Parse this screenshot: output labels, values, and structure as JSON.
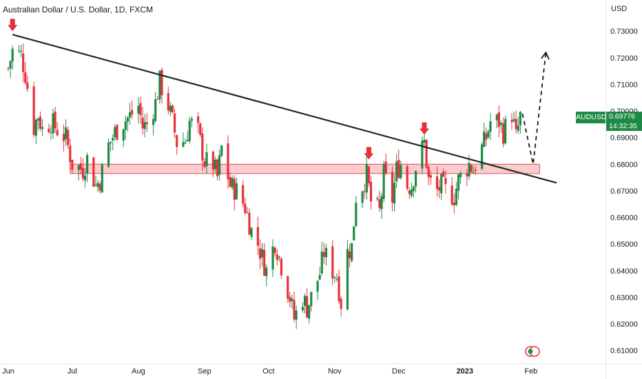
{
  "header": {
    "title": "Australian Dollar / U.S. Dollar, 1D, FXCM",
    "currency": "USD"
  },
  "symbol_tag": {
    "symbol": "AUDUSD",
    "price": "0.69776",
    "countdown": "14:32:35",
    "color": "#1e8a45"
  },
  "colors": {
    "up": "#1e8a45",
    "down": "#e8303a",
    "trendline": "#1a2a1a",
    "zone_fill": "#f5a3a8",
    "zone_border": "#e04a52",
    "arrow": "#e8303a",
    "projection": "#131722"
  },
  "chart_data": {
    "type": "candlestick",
    "title": "Australian Dollar / U.S. Dollar, 1D, FXCM",
    "ylabel": "USD",
    "ylim": [
      0.605,
      0.736
    ],
    "y_ticks": [
      "0.73000",
      "0.72000",
      "0.71000",
      "0.70000",
      "0.69000",
      "0.68000",
      "0.67000",
      "0.66000",
      "0.65000",
      "0.64000",
      "0.63000",
      "0.62000",
      "0.61000"
    ],
    "x_ticks": [
      {
        "label": "Jun",
        "date": "2022-06-01"
      },
      {
        "label": "Jul",
        "date": "2022-07-01"
      },
      {
        "label": "Aug",
        "date": "2022-08-01"
      },
      {
        "label": "Sep",
        "date": "2022-09-01"
      },
      {
        "label": "Oct",
        "date": "2022-10-01"
      },
      {
        "label": "Nov",
        "date": "2022-11-01"
      },
      {
        "label": "Dec",
        "date": "2022-12-01"
      },
      {
        "label": "2023",
        "date": "2023-01-01",
        "bold": true
      },
      {
        "label": "Feb",
        "date": "2023-02-01"
      }
    ],
    "xlim": [
      "2022-06-01",
      "2023-02-13"
    ],
    "close_path": [
      [
        "2022-06-01",
        0.716
      ],
      [
        "2022-06-03",
        0.7226
      ],
      [
        "2022-06-07",
        0.721
      ],
      [
        "2022-06-09",
        0.714
      ],
      [
        "2022-06-13",
        0.694
      ],
      [
        "2022-06-15",
        0.6985
      ],
      [
        "2022-06-17",
        0.693
      ],
      [
        "2022-06-21",
        0.696
      ],
      [
        "2022-06-24",
        0.693
      ],
      [
        "2022-06-28",
        0.69
      ],
      [
        "2022-07-01",
        0.68
      ],
      [
        "2022-07-06",
        0.678
      ],
      [
        "2022-07-08",
        0.682
      ],
      [
        "2022-07-12",
        0.672
      ],
      [
        "2022-07-14",
        0.674
      ],
      [
        "2022-07-18",
        0.687
      ],
      [
        "2022-07-21",
        0.692
      ],
      [
        "2022-07-25",
        0.696
      ],
      [
        "2022-07-28",
        0.698
      ],
      [
        "2022-08-01",
        0.702
      ],
      [
        "2022-08-03",
        0.694
      ],
      [
        "2022-08-05",
        0.695
      ],
      [
        "2022-08-09",
        0.703
      ],
      [
        "2022-08-11",
        0.711
      ],
      [
        "2022-08-15",
        0.702
      ],
      [
        "2022-08-17",
        0.696
      ],
      [
        "2022-08-19",
        0.688
      ],
      [
        "2022-08-23",
        0.689
      ],
      [
        "2022-08-25",
        0.696
      ],
      [
        "2022-08-29",
        0.692
      ],
      [
        "2022-09-01",
        0.681
      ],
      [
        "2022-09-05",
        0.68
      ],
      [
        "2022-09-07",
        0.675
      ],
      [
        "2022-09-09",
        0.686
      ],
      [
        "2022-09-13",
        0.672
      ],
      [
        "2022-09-16",
        0.67
      ],
      [
        "2022-09-20",
        0.664
      ],
      [
        "2022-09-23",
        0.655
      ],
      [
        "2022-09-26",
        0.65
      ],
      [
        "2022-09-28",
        0.645
      ],
      [
        "2022-09-30",
        0.64
      ],
      [
        "2022-10-04",
        0.651
      ],
      [
        "2022-10-07",
        0.642
      ],
      [
        "2022-10-11",
        0.63
      ],
      [
        "2022-10-13",
        0.622
      ],
      [
        "2022-10-17",
        0.63
      ],
      [
        "2022-10-19",
        0.626
      ],
      [
        "2022-10-21",
        0.63
      ],
      [
        "2022-10-25",
        0.639
      ],
      [
        "2022-10-27",
        0.647
      ],
      [
        "2022-10-31",
        0.64
      ],
      [
        "2022-11-02",
        0.638
      ],
      [
        "2022-11-04",
        0.628
      ],
      [
        "2022-11-07",
        0.647
      ],
      [
        "2022-11-09",
        0.649
      ],
      [
        "2022-11-11",
        0.668
      ],
      [
        "2022-11-14",
        0.672
      ],
      [
        "2022-11-16",
        0.676
      ],
      [
        "2022-11-18",
        0.666
      ],
      [
        "2022-11-22",
        0.662
      ],
      [
        "2022-11-24",
        0.676
      ],
      [
        "2022-11-28",
        0.667
      ],
      [
        "2022-11-30",
        0.678
      ],
      [
        "2022-12-02",
        0.68
      ],
      [
        "2022-12-05",
        0.672
      ],
      [
        "2022-12-07",
        0.672
      ],
      [
        "2022-12-09",
        0.679
      ],
      [
        "2022-12-13",
        0.688
      ],
      [
        "2022-12-15",
        0.674
      ],
      [
        "2022-12-19",
        0.67
      ],
      [
        "2022-12-21",
        0.672
      ],
      [
        "2022-12-23",
        0.67
      ],
      [
        "2022-12-27",
        0.668
      ],
      [
        "2022-12-29",
        0.674
      ],
      [
        "2023-01-03",
        0.68
      ],
      [
        "2023-01-05",
        0.678
      ],
      [
        "2023-01-09",
        0.686
      ],
      [
        "2023-01-11",
        0.69
      ],
      [
        "2023-01-13",
        0.696
      ],
      [
        "2023-01-17",
        0.696
      ],
      [
        "2023-01-19",
        0.692
      ],
      [
        "2023-01-23",
        0.699
      ],
      [
        "2023-01-25",
        0.69
      ],
      [
        "2023-01-27",
        0.6978
      ]
    ],
    "support_zone": {
      "low": 0.6765,
      "high": 0.68,
      "start": "2022-06-30",
      "end": "2023-02-05"
    },
    "trendline": {
      "start": [
        "2022-06-03",
        0.7287
      ],
      "end": [
        "2023-02-13",
        0.673
      ]
    },
    "markers": [
      {
        "date": "2022-06-03",
        "price": 0.7287
      },
      {
        "date": "2022-11-17",
        "price": 0.6805
      },
      {
        "date": "2022-12-13",
        "price": 0.6898
      }
    ],
    "projection": [
      [
        "2023-01-28",
        0.699
      ],
      [
        "2023-02-02",
        0.68
      ],
      [
        "2023-02-08",
        0.722
      ]
    ]
  }
}
